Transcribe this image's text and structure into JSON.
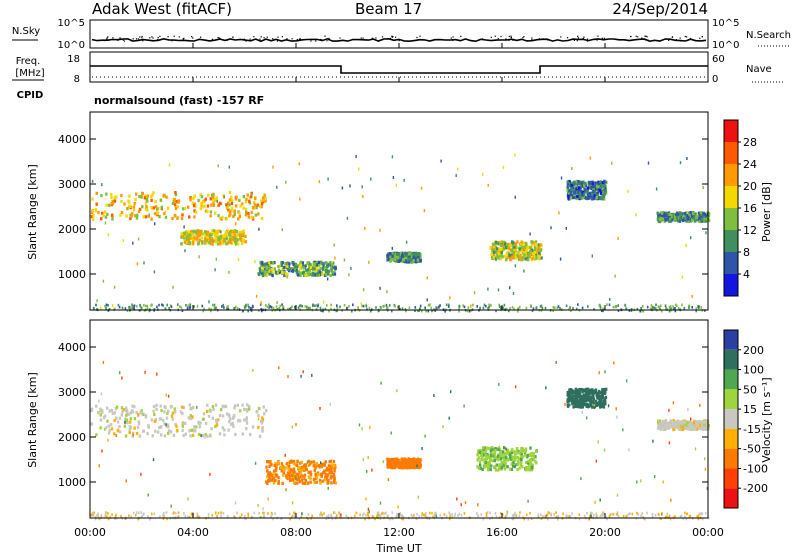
{
  "header": {
    "station": "Adak West (fitACF)",
    "beam": "Beam 17",
    "date": "24/Sep/2014"
  },
  "top_panel": {
    "left_label": "N.Sky",
    "right_label": "N.Search",
    "left_ticks": [
      "10^5",
      "10^0"
    ],
    "right_ticks": [
      "10^5",
      "10^0"
    ]
  },
  "freq_panel": {
    "left_label_1": "Freq.",
    "left_label_2": "[MHz]",
    "right_label": "Nave",
    "left_ticks": [
      "18",
      "8"
    ],
    "right_ticks": [
      "60",
      "0"
    ],
    "cpid_label": "CPID",
    "cpid_text": "normalsound (fast) -157 RF"
  },
  "x_axis": {
    "label": "Time UT",
    "ticks": [
      "00:00",
      "04:00",
      "08:00",
      "12:00",
      "16:00",
      "20:00",
      "00:00"
    ]
  },
  "power_colorbar": {
    "label": "Power [dB]",
    "ticks": [
      "28",
      "24",
      "20",
      "16",
      "12",
      "8",
      "4"
    ],
    "colors": [
      "#ee1111",
      "#ff5a00",
      "#ff9a00",
      "#f5d800",
      "#7fbf3f",
      "#3f8f5f",
      "#2f55a8",
      "#1515e0"
    ]
  },
  "velocity_colorbar": {
    "label": "Velocity [m s⁻¹]",
    "ticks": [
      "200",
      "100",
      "50",
      "15",
      "-15",
      "-50",
      "-100",
      "-200"
    ],
    "colors": [
      "#2a3fa0",
      "#2f6f5f",
      "#4fa84f",
      "#9fd43f",
      "#c8c8c0",
      "#ffb000",
      "#ff7a00",
      "#ff4000",
      "#ee1111"
    ]
  },
  "chart_data": [
    {
      "type": "heatmap",
      "title": "Power",
      "xlabel": "Time UT",
      "ylabel": "Slant Range [km]",
      "xlim": [
        0,
        24
      ],
      "ylim": [
        200,
        4600
      ],
      "yticks": [
        1000,
        2000,
        3000,
        4000
      ],
      "colorbar_label": "Power [dB]",
      "regions": [
        {
          "t_start": 0.0,
          "t_end": 6.8,
          "r_center": 2550,
          "r_half": 300,
          "value": 20
        },
        {
          "t_start": 3.5,
          "t_end": 6.0,
          "r_center": 1850,
          "r_half": 150,
          "value": 18
        },
        {
          "t_start": 6.5,
          "t_end": 9.5,
          "r_center": 1150,
          "r_half": 150,
          "value": 12
        },
        {
          "t_start": 11.5,
          "t_end": 12.8,
          "r_center": 1400,
          "r_half": 100,
          "value": 10
        },
        {
          "t_start": 15.5,
          "t_end": 17.5,
          "r_center": 1550,
          "r_half": 200,
          "value": 16
        },
        {
          "t_start": 18.5,
          "t_end": 20.0,
          "r_center": 2900,
          "r_half": 200,
          "value": 8
        },
        {
          "t_start": 22.0,
          "t_end": 24.0,
          "r_center": 2300,
          "r_half": 100,
          "value": 10
        }
      ]
    },
    {
      "type": "heatmap",
      "title": "Velocity",
      "xlabel": "Time UT",
      "ylabel": "Slant Range [km]",
      "xlim": [
        0,
        24
      ],
      "ylim": [
        200,
        4600
      ],
      "yticks": [
        1000,
        2000,
        3000,
        4000
      ],
      "colorbar_label": "Velocity [m s⁻¹]",
      "regions": [
        {
          "t_start": 0.0,
          "t_end": 6.8,
          "r_center": 2400,
          "r_half": 350,
          "value": 0
        },
        {
          "t_start": 6.8,
          "t_end": 9.5,
          "r_center": 1250,
          "r_half": 250,
          "value": -60
        },
        {
          "t_start": 11.5,
          "t_end": 12.8,
          "r_center": 1450,
          "r_half": 100,
          "value": -80
        },
        {
          "t_start": 15.0,
          "t_end": 17.3,
          "r_center": 1550,
          "r_half": 250,
          "value": 40
        },
        {
          "t_start": 18.5,
          "t_end": 20.0,
          "r_center": 2900,
          "r_half": 200,
          "value": 150
        },
        {
          "t_start": 22.0,
          "t_end": 24.0,
          "r_center": 2300,
          "r_half": 100,
          "value": 0
        }
      ]
    }
  ]
}
